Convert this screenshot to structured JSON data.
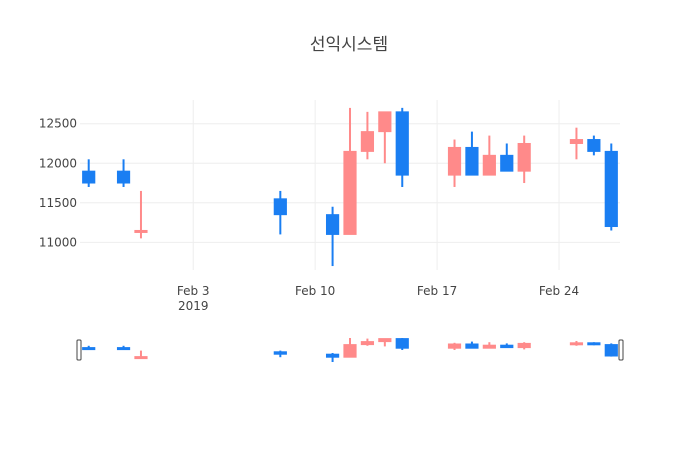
{
  "chart_data": {
    "type": "candlestick",
    "title": "선익시스템",
    "xlabel": "",
    "ylabel": "",
    "x_ticks": [
      {
        "date": "2019-02-03",
        "label": "Feb 3",
        "sublabel": "2019"
      },
      {
        "date": "2019-02-10",
        "label": "Feb 10",
        "sublabel": ""
      },
      {
        "date": "2019-02-17",
        "label": "Feb 17",
        "sublabel": ""
      },
      {
        "date": "2019-02-24",
        "label": "Feb 24",
        "sublabel": ""
      }
    ],
    "y_ticks": [
      11000,
      11500,
      12000,
      12500
    ],
    "xlim": [
      "2019-01-27T12:00",
      "2019-02-27T12:00"
    ],
    "ylim": [
      10650,
      12800
    ],
    "grid": true,
    "rangeslider": true,
    "colors": {
      "increasing": "#ff8a8a",
      "decreasing": "#1a7ef2"
    },
    "candles": [
      {
        "date": "2019-01-28",
        "open": 11900,
        "high": 12050,
        "low": 11700,
        "close": 11750
      },
      {
        "date": "2019-01-30",
        "open": 11900,
        "high": 12050,
        "low": 11700,
        "close": 11750
      },
      {
        "date": "2019-01-31",
        "open": 11150,
        "high": 11650,
        "low": 11050,
        "close": 11150
      },
      {
        "date": "2019-02-08",
        "open": 11550,
        "high": 11650,
        "low": 11100,
        "close": 11350
      },
      {
        "date": "2019-02-11",
        "open": 11350,
        "high": 11450,
        "low": 10700,
        "close": 11100
      },
      {
        "date": "2019-02-12",
        "open": 11100,
        "high": 12700,
        "low": 11100,
        "close": 12150
      },
      {
        "date": "2019-02-13",
        "open": 12150,
        "high": 12650,
        "low": 12050,
        "close": 12400
      },
      {
        "date": "2019-02-14",
        "open": 12400,
        "high": 12650,
        "low": 12000,
        "close": 12650
      },
      {
        "date": "2019-02-15",
        "open": 12650,
        "high": 12700,
        "low": 11700,
        "close": 11850
      },
      {
        "date": "2019-02-18",
        "open": 11850,
        "high": 12300,
        "low": 11700,
        "close": 12200
      },
      {
        "date": "2019-02-19",
        "open": 12200,
        "high": 12400,
        "low": 11850,
        "close": 11850
      },
      {
        "date": "2019-02-20",
        "open": 11850,
        "high": 12350,
        "low": 11850,
        "close": 12100
      },
      {
        "date": "2019-02-21",
        "open": 12100,
        "high": 12250,
        "low": 11900,
        "close": 11900
      },
      {
        "date": "2019-02-22",
        "open": 11900,
        "high": 12350,
        "low": 11750,
        "close": 12250
      },
      {
        "date": "2019-02-25",
        "open": 12250,
        "high": 12450,
        "low": 12050,
        "close": 12300
      },
      {
        "date": "2019-02-26",
        "open": 12300,
        "high": 12350,
        "low": 12100,
        "close": 12150
      },
      {
        "date": "2019-02-27",
        "open": 12150,
        "high": 12250,
        "low": 11150,
        "close": 11200
      }
    ]
  }
}
